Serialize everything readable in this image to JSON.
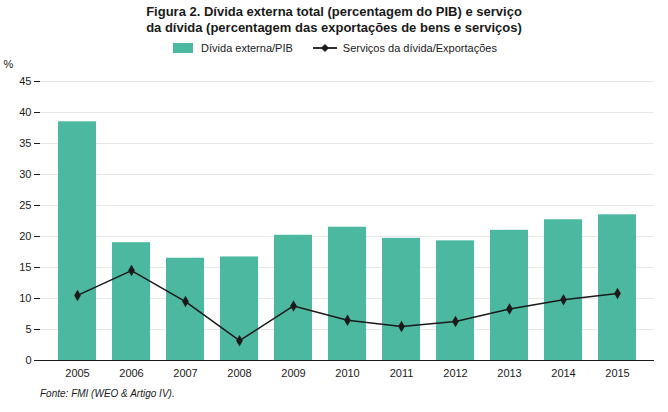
{
  "chart_data": {
    "type": "bar",
    "title": "Figura 2. Dívida externa total (percentagem do PIB) e serviço\nda dívida (percentagem das exportações de bens e serviços)",
    "categories": [
      "2005",
      "2006",
      "2007",
      "2008",
      "2009",
      "2010",
      "2011",
      "2012",
      "2013",
      "2014",
      "2015"
    ],
    "series": [
      {
        "name": "Dívida externa/PIB",
        "type": "bar",
        "color": "#4db8a0",
        "values": [
          38.5,
          19.0,
          16.5,
          16.7,
          20.2,
          21.5,
          19.7,
          19.3,
          21.0,
          22.7,
          23.5
        ]
      },
      {
        "name": "Serviços da dívida/Exportações",
        "type": "line",
        "color": "#1a1a1a",
        "marker": "diamond",
        "values": [
          10.5,
          14.5,
          9.5,
          3.2,
          8.8,
          6.5,
          5.5,
          6.3,
          8.3,
          9.8,
          10.8
        ]
      }
    ],
    "ylabel": "%",
    "ylim": [
      0,
      45
    ],
    "yticks": [
      0,
      5,
      10,
      15,
      20,
      25,
      30,
      35,
      40,
      45
    ],
    "grid": true,
    "legend": "top",
    "caption": "Fonte: FMI (WEO & Artigo IV)."
  }
}
